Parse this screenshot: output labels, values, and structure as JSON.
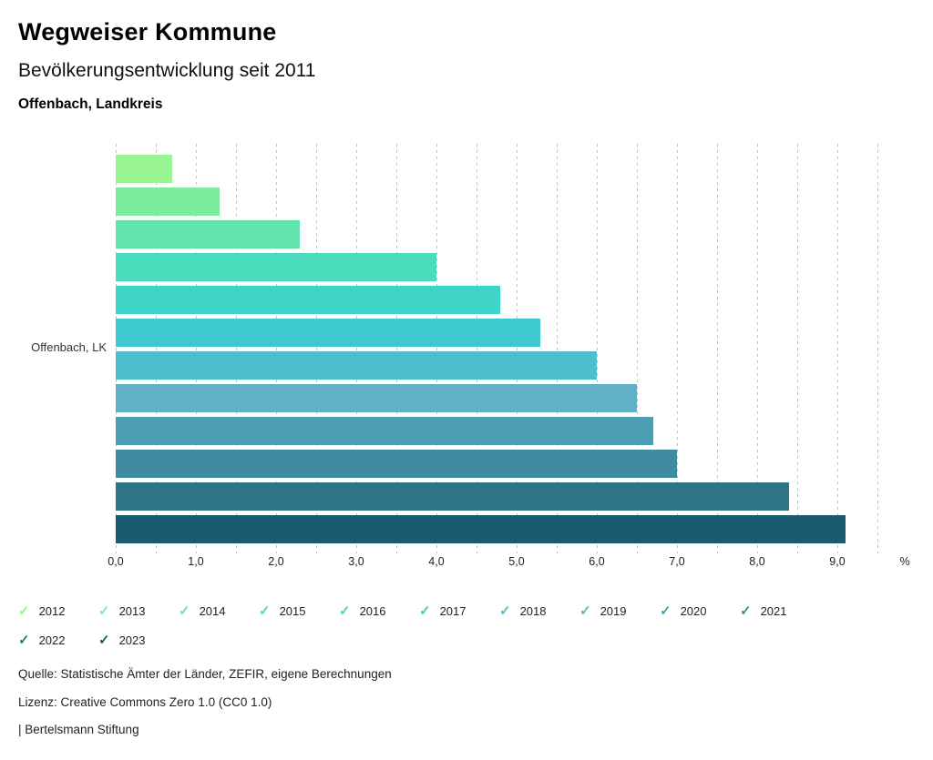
{
  "header": {
    "title": "Wegweiser Kommune",
    "subtitle": "Bevölkerungsentwicklung seit 2011",
    "region": "Offenbach, Landkreis"
  },
  "chart_data": {
    "type": "bar",
    "orientation": "horizontal",
    "title": "Bevölkerungsentwicklung seit 2011",
    "category_label": "Offenbach, LK",
    "unit_label": "%",
    "xlim": [
      0,
      9.5
    ],
    "grid_step": 0.5,
    "x_tick_step": 1.0,
    "x_tick_labels": [
      "0,0",
      "1,0",
      "2,0",
      "3,0",
      "4,0",
      "5,0",
      "6,0",
      "7,0",
      "8,0",
      "9,0"
    ],
    "grid": true,
    "legend_position": "bottom",
    "series": [
      {
        "name": "2012",
        "value": 0.7,
        "color": "#99F492"
      },
      {
        "name": "2013",
        "value": 1.3,
        "color": "#7CEC9E"
      },
      {
        "name": "2014",
        "value": 2.3,
        "color": "#62E3AC"
      },
      {
        "name": "2015",
        "value": 4.0,
        "color": "#4BDBBD"
      },
      {
        "name": "2016",
        "value": 4.8,
        "color": "#3ED4C7"
      },
      {
        "name": "2017",
        "value": 5.3,
        "color": "#3EC9CE"
      },
      {
        "name": "2018",
        "value": 6.0,
        "color": "#4DBECD"
      },
      {
        "name": "2019",
        "value": 6.5,
        "color": "#61B0C6"
      },
      {
        "name": "2020",
        "value": 6.7,
        "color": "#4E9EB3"
      },
      {
        "name": "2021",
        "value": 7.0,
        "color": "#3F8BA0"
      },
      {
        "name": "2022",
        "value": 8.4,
        "color": "#2E7488"
      },
      {
        "name": "2023",
        "value": 9.1,
        "color": "#1A5C6D"
      }
    ],
    "legend_check_icon": "✓"
  },
  "footer": {
    "source": "Quelle: Statistische Ämter der Länder, ZEFIR, eigene Berechnungen",
    "license": "Lizenz: Creative Commons Zero 1.0 (CC0 1.0)",
    "attribution": "| Bertelsmann Stiftung"
  }
}
